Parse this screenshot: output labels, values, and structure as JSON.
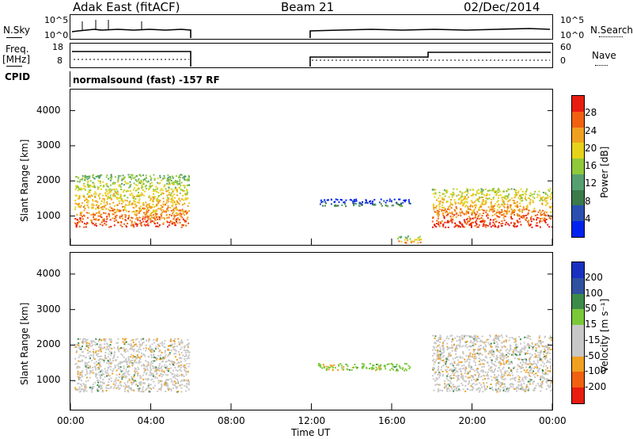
{
  "header": {
    "station": "Adak East (fitACF)",
    "beam": "Beam 21",
    "date": "02/Dec/2014"
  },
  "left_labels": {
    "nsky": "N.Sky",
    "freq": "Freq.",
    "freq_unit": "[MHz]",
    "cpid": "CPID"
  },
  "right_labels": {
    "nsearch": "N.Search",
    "nave": "Nave"
  },
  "mini_axes": {
    "noise_left": [
      "10^5",
      "10^0"
    ],
    "noise_right": [
      "10^5",
      "10^0"
    ],
    "freq_left": [
      "18",
      "8"
    ],
    "nave_right": [
      "60",
      "0"
    ]
  },
  "cpid_text": "normalsound (fast) -157 RF",
  "panels": {
    "power": {
      "ylabel": "Slant Range [km]",
      "cbar_label": "Power [dB]"
    },
    "velocity": {
      "ylabel": "Slant Range [km]",
      "cbar_label": "Velocity [m s⁻¹]"
    }
  },
  "xaxis_label": "Time UT",
  "colors": {
    "power_scale": [
      "#0022ee",
      "#2a4fb0",
      "#3b7a4a",
      "#55a070",
      "#8fc83a",
      "#e6d21a",
      "#f0a020",
      "#f06010",
      "#e81c10"
    ],
    "velocity_scale": [
      "#e81c10",
      "#f06010",
      "#f0a020",
      "#c8c8c8",
      "#c8c8c8",
      "#7ac838",
      "#3b8a4a",
      "#3050a0",
      "#1830c0"
    ]
  },
  "chart_data": [
    {
      "type": "heatmap",
      "title": "Power",
      "xlabel": "Time UT",
      "ylabel": "Slant Range [km]",
      "x_ticks": [
        "00:00",
        "04:00",
        "08:00",
        "12:00",
        "16:00",
        "20:00",
        "00:00"
      ],
      "y_ticks": [
        1000,
        2000,
        3000,
        4000
      ],
      "xlim_hours": [
        0,
        24
      ],
      "ylim_km": [
        180,
        4600
      ],
      "colorbar": {
        "label": "Power [dB]",
        "ticks": [
          4,
          8,
          12,
          16,
          20,
          24,
          28
        ]
      },
      "echo_regions": [
        {
          "x": [
            0.2,
            5.9
          ],
          "y": [
            700,
            2200
          ],
          "peak_db": 26
        },
        {
          "x": [
            12.3,
            16.9
          ],
          "y": [
            1300,
            1500
          ],
          "peak_db": 10
        },
        {
          "x": [
            16.2,
            17.5
          ],
          "y": [
            250,
            450
          ],
          "peak_db": 24
        },
        {
          "x": [
            18.0,
            24.0
          ],
          "y": [
            700,
            1800
          ],
          "peak_db": 28
        }
      ]
    },
    {
      "type": "heatmap",
      "title": "Velocity",
      "xlabel": "Time UT",
      "ylabel": "Slant Range [km]",
      "x_ticks": [
        "00:00",
        "04:00",
        "08:00",
        "12:00",
        "16:00",
        "20:00",
        "00:00"
      ],
      "y_ticks": [
        1000,
        2000,
        3000,
        4000
      ],
      "xlim_hours": [
        0,
        24
      ],
      "ylim_km": [
        180,
        4600
      ],
      "colorbar": {
        "label": "Velocity [m s⁻¹]",
        "ticks": [
          200,
          100,
          50,
          15,
          -15,
          -50,
          -100,
          -200
        ]
      },
      "echo_regions": [
        {
          "x": [
            0.2,
            5.9
          ],
          "y": [
            700,
            2200
          ],
          "dominant_velocity": -15
        },
        {
          "x": [
            12.3,
            16.9
          ],
          "y": [
            1300,
            1500
          ],
          "dominant_velocity": 50
        },
        {
          "x": [
            18.0,
            24.0
          ],
          "y": [
            700,
            2300
          ],
          "dominant_velocity": -15
        }
      ]
    }
  ]
}
